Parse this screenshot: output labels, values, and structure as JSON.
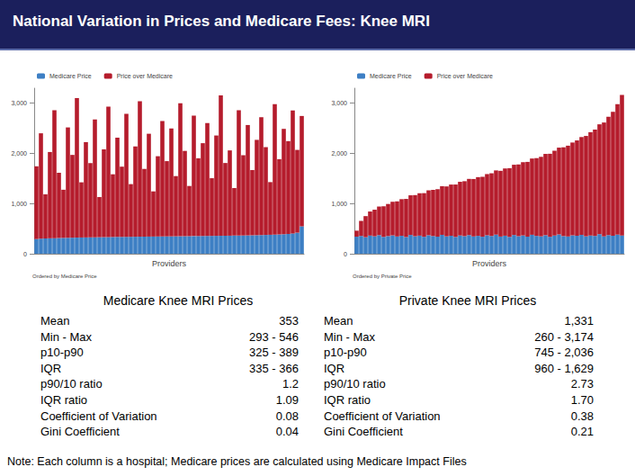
{
  "title": "National Variation in Prices and Medicare Fees: Knee MRI",
  "chart_data": [
    {
      "type": "bar",
      "stacked": true,
      "xlabel": "Providers",
      "annotation": "Ordered by Medicare Price",
      "legend": "top left",
      "grid": false,
      "tick_labels": "y",
      "ylim": [
        0,
        3300
      ],
      "yticks": [
        0,
        {
          "value": 1000,
          "label": "1,000"
        },
        {
          "value": 2000,
          "label": "2,000"
        },
        {
          "value": 3000,
          "label": "3,000"
        }
      ],
      "categories": [
        null,
        null,
        null,
        null,
        null,
        null,
        null,
        null,
        null,
        null,
        null,
        null,
        null,
        null,
        null,
        null,
        null,
        null,
        null,
        null,
        null,
        null,
        null,
        null,
        null,
        null,
        null,
        null,
        null,
        null,
        null,
        null,
        null,
        null,
        null,
        null,
        null,
        null,
        null,
        null,
        null,
        null,
        null,
        null,
        null,
        null,
        null,
        null,
        null,
        null,
        null,
        null,
        null,
        null,
        null,
        null,
        null,
        null,
        null,
        null
      ],
      "series": [
        {
          "name": "Medicare Price",
          "color": "#3d7fc4",
          "values": [
            293,
            301,
            305,
            308,
            311,
            314,
            316,
            318,
            320,
            322,
            324,
            325,
            327,
            328,
            330,
            331,
            333,
            334,
            335,
            336,
            337,
            338,
            339,
            340,
            341,
            342,
            343,
            344,
            345,
            346,
            347,
            348,
            349,
            350,
            351,
            352,
            353,
            354,
            355,
            356,
            357,
            358,
            359,
            360,
            361,
            362,
            364,
            366,
            368,
            370,
            372,
            375,
            378,
            381,
            385,
            389,
            395,
            405,
            420,
            546
          ]
        },
        {
          "name": "Price over Medicare",
          "color": "#b51c2c",
          "values": [
            1450,
            2100,
            880,
            1720,
            2550,
            1300,
            960,
            2200,
            1650,
            2780,
            1100,
            1900,
            1480,
            2350,
            800,
            1750,
            2600,
            1250,
            1980,
            1400,
            2450,
            1050,
            1800,
            2700,
            1350,
            2050,
            900,
            1600,
            2300,
            1500,
            2150,
            1200,
            2650,
            1700,
            1000,
            2400,
            1550,
            1850,
            2250,
            1150,
            2000,
            2800,
            1450,
            1700,
            950,
            2500,
            1600,
            2200,
            1300,
            1900,
            2350,
            1750,
            1050,
            2600,
            1500,
            2100,
            1850,
            2450,
            1650,
            2200
          ]
        }
      ]
    },
    {
      "type": "bar",
      "stacked": true,
      "xlabel": "Providers",
      "annotation": "Ordered by Private Price",
      "legend": "top left",
      "grid": false,
      "tick_labels": "y",
      "ylim": [
        0,
        3300
      ],
      "yticks": [
        0,
        {
          "value": 1000,
          "label": "1,000"
        },
        {
          "value": 2000,
          "label": "2,000"
        },
        {
          "value": 3000,
          "label": "3,000"
        }
      ],
      "categories": [
        null,
        null,
        null,
        null,
        null,
        null,
        null,
        null,
        null,
        null,
        null,
        null,
        null,
        null,
        null,
        null,
        null,
        null,
        null,
        null,
        null,
        null,
        null,
        null,
        null,
        null,
        null,
        null,
        null,
        null,
        null,
        null,
        null,
        null,
        null,
        null,
        null,
        null,
        null,
        null,
        null,
        null,
        null,
        null,
        null,
        null,
        null,
        null,
        null,
        null,
        null,
        null,
        null,
        null,
        null,
        null,
        null,
        null,
        null,
        null
      ],
      "series": [
        {
          "name": "Medicare Price",
          "color": "#3d7fc4",
          "values": [
            340,
            355,
            330,
            362,
            348,
            371,
            336,
            352,
            366,
            344,
            358,
            333,
            375,
            349,
            361,
            338,
            369,
            353,
            342,
            377,
            347,
            359,
            335,
            364,
            351,
            372,
            345,
            357,
            339,
            368,
            354,
            381,
            343,
            360,
            336,
            374,
            350,
            365,
            341,
            378,
            356,
            347,
            370,
            338,
            362,
            385,
            352,
            344,
            367,
            359,
            376,
            348,
            363,
            355,
            390,
            346,
            372,
            360,
            380,
            365
          ]
        },
        {
          "name": "Price over Medicare",
          "color": "#b51c2c",
          "values": [
            120,
            300,
            420,
            480,
            530,
            570,
            610,
            640,
            670,
            700,
            730,
            760,
            790,
            820,
            845,
            870,
            895,
            920,
            945,
            970,
            995,
            1020,
            1045,
            1070,
            1095,
            1120,
            1145,
            1170,
            1195,
            1220,
            1250,
            1280,
            1310,
            1340,
            1370,
            1400,
            1430,
            1460,
            1490,
            1520,
            1550,
            1585,
            1620,
            1655,
            1690,
            1730,
            1770,
            1810,
            1850,
            1900,
            1950,
            2000,
            2060,
            2120,
            2190,
            2270,
            2360,
            2470,
            2600,
            2800
          ]
        }
      ]
    }
  ],
  "tables": [
    {
      "title": "Medicare Knee MRI Prices",
      "rows": [
        [
          "Mean",
          "353"
        ],
        [
          "Min - Max",
          "293 - 546"
        ],
        [
          "p10-p90",
          "325 - 389"
        ],
        [
          "IQR",
          "335 - 366"
        ],
        [
          "p90/10 ratio",
          "1.2"
        ],
        [
          "IQR ratio",
          "1.09"
        ],
        [
          "Coefficient of Variation",
          "0.08"
        ],
        [
          "Gini Coefficient",
          "0.04"
        ]
      ]
    },
    {
      "title": "Private Knee MRI Prices",
      "rows": [
        [
          "Mean",
          "1,331"
        ],
        [
          "Min - Max",
          "260 - 3,174"
        ],
        [
          "p10-p90",
          "745 - 2,036"
        ],
        [
          "IQR",
          "960 - 1,629"
        ],
        [
          "p90/10 ratio",
          "2.73"
        ],
        [
          "IQR ratio",
          "1.70"
        ],
        [
          "Coefficient of Variation",
          "0.38"
        ],
        [
          "Gini Coefficient",
          "0.21"
        ]
      ]
    }
  ],
  "note": "Note: Each column is a hospital; Medicare prices are calculated using Medicare Impact Files"
}
